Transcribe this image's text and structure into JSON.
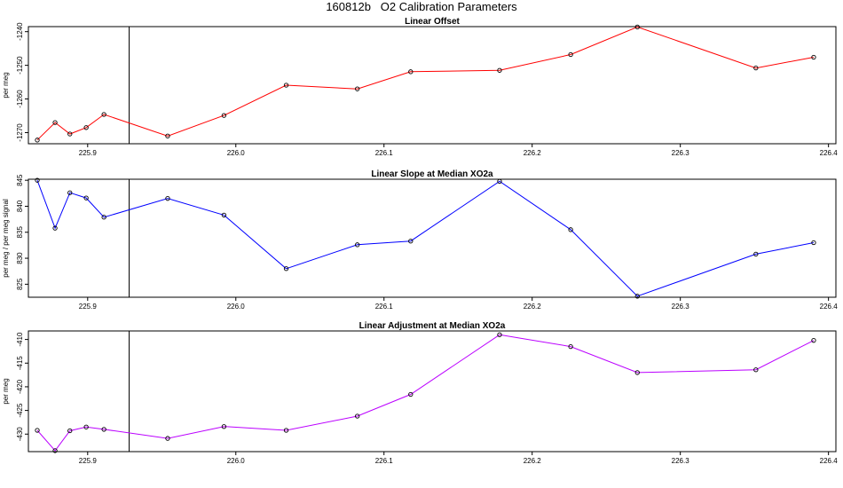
{
  "title": "160812b   O2 Calibration Parameters",
  "chart_data": [
    {
      "type": "line",
      "title": "Linear Offset",
      "xlabel": "",
      "ylabel": "per meg",
      "color": "#ff0000",
      "xlim": [
        225.86,
        226.405
      ],
      "ylim": [
        -1273.3,
        -1238.5
      ],
      "xticks": [
        225.9,
        226.0,
        226.1,
        226.2,
        226.3,
        226.4
      ],
      "xtick_labels": [
        "225.9",
        "226.0",
        "226.1",
        "226.2",
        "226.3",
        "226.4"
      ],
      "yticks": [
        -1270,
        -1260,
        -1250,
        -1240
      ],
      "ytick_labels": [
        "-1270",
        "-1260",
        "-1250",
        "-1240"
      ],
      "vline_x": 225.928,
      "x": [
        225.866,
        225.878,
        225.888,
        225.899,
        225.911,
        225.954,
        225.992,
        226.034,
        226.082,
        226.118,
        226.178,
        226.226,
        226.271,
        226.351,
        226.39
      ],
      "y": [
        -1272.2,
        -1267.0,
        -1270.4,
        -1268.5,
        -1264.6,
        -1271.0,
        -1264.9,
        -1255.9,
        -1257.0,
        -1251.9,
        -1251.5,
        -1246.8,
        -1238.6,
        -1250.8,
        -1247.6
      ]
    },
    {
      "type": "line",
      "title": "Linear Slope at Median XO2a",
      "xlabel": "",
      "ylabel": "per meg / per meg signal",
      "color": "#0000ff",
      "xlim": [
        225.86,
        226.405
      ],
      "ylim": [
        822.5,
        845.2
      ],
      "xticks": [
        225.9,
        226.0,
        226.1,
        226.2,
        226.3,
        226.4
      ],
      "xtick_labels": [
        "225.9",
        "226.0",
        "226.1",
        "226.2",
        "226.3",
        "226.4"
      ],
      "yticks": [
        825,
        830,
        835,
        840,
        845
      ],
      "ytick_labels": [
        "825",
        "830",
        "835",
        "840",
        "845"
      ],
      "vline_x": 225.928,
      "x": [
        225.866,
        225.878,
        225.888,
        225.899,
        225.911,
        225.954,
        225.992,
        226.034,
        226.082,
        226.118,
        226.178,
        226.226,
        226.271,
        226.351,
        226.39
      ],
      "y": [
        845.0,
        835.8,
        842.6,
        841.6,
        837.9,
        841.5,
        838.3,
        828.0,
        832.6,
        833.3,
        844.8,
        835.5,
        822.7,
        830.8,
        833.0
      ]
    },
    {
      "type": "line",
      "title": "Linear Adjustment at Median XO2a",
      "xlabel": "",
      "ylabel": "per meg",
      "color": "#bb00ff",
      "xlim": [
        225.86,
        226.405
      ],
      "ylim": [
        -433.7,
        -408.2
      ],
      "xticks": [
        225.9,
        226.0,
        226.1,
        226.2,
        226.3,
        226.4
      ],
      "xtick_labels": [
        "225.9",
        "226.0",
        "226.1",
        "226.2",
        "226.3",
        "226.4"
      ],
      "yticks": [
        -430,
        -425,
        -420,
        -415,
        -410
      ],
      "ytick_labels": [
        "-430",
        "-425",
        "-420",
        "-415",
        "-410"
      ],
      "vline_x": 225.928,
      "x": [
        225.866,
        225.878,
        225.888,
        225.899,
        225.911,
        225.954,
        225.992,
        226.034,
        226.082,
        226.118,
        226.178,
        226.226,
        226.271,
        226.351,
        226.39
      ],
      "y": [
        -429.2,
        -433.5,
        -429.3,
        -428.5,
        -429.0,
        -430.9,
        -428.4,
        -429.2,
        -426.2,
        -421.6,
        -409.0,
        -411.5,
        -417.0,
        -416.4,
        -410.2
      ]
    }
  ]
}
